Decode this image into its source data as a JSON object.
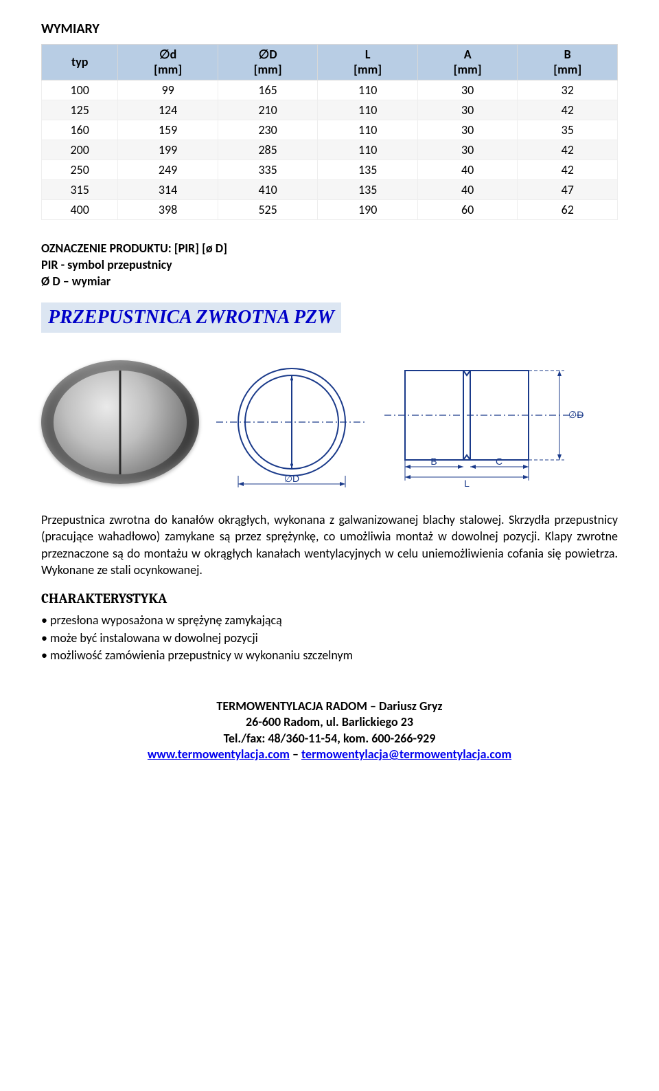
{
  "section_title": "WYMIARY",
  "table": {
    "columns": [
      {
        "label": "typ",
        "unit": ""
      },
      {
        "label": "∅d",
        "unit": "[mm]"
      },
      {
        "label": "∅D",
        "unit": "[mm]"
      },
      {
        "label": "L",
        "unit": "[mm]"
      },
      {
        "label": "A",
        "unit": "[mm]"
      },
      {
        "label": "B",
        "unit": "[mm]"
      }
    ],
    "rows": [
      [
        "100",
        "99",
        "165",
        "110",
        "30",
        "32"
      ],
      [
        "125",
        "124",
        "210",
        "110",
        "30",
        "42"
      ],
      [
        "160",
        "159",
        "230",
        "110",
        "30",
        "35"
      ],
      [
        "200",
        "199",
        "285",
        "110",
        "30",
        "42"
      ],
      [
        "250",
        "249",
        "335",
        "135",
        "40",
        "42"
      ],
      [
        "315",
        "314",
        "410",
        "135",
        "40",
        "47"
      ],
      [
        "400",
        "398",
        "525",
        "190",
        "60",
        "62"
      ]
    ],
    "header_bg": "#b8cde4",
    "row_alt_bg": "#f6f6f6",
    "border_color": "#d8d8d8",
    "font_size": 18
  },
  "product_code": {
    "line1": "OZNACZENIE PRODUKTU: [PIR] [ø D]",
    "line2": "PIR - symbol przepustnicy",
    "line3": "Ø  D – wymiar"
  },
  "heading2": "PRZEPUSTNICA ZWROTNA    PZW",
  "heading2_style": {
    "background_color": "#dce6f2",
    "text_color": "#0000c8",
    "font_size": 28,
    "font_style": "italic bold",
    "font_family": "Times New Roman"
  },
  "diagram": {
    "type": "schematic",
    "circle_label": "∅D",
    "rect_labels": {
      "B": "B",
      "C": "C",
      "L": "L",
      "diameter": "∅D"
    },
    "stroke_color": "#1a3a8a",
    "label_color": "#1a3a8a",
    "dash_pattern": "6,4"
  },
  "body_text": "Przepustnica zwrotna do kanałów okrągłych, wykonana z galwanizowanej blachy stalowej. Skrzydła przepustnicy (pracujące wahadłowo) zamykane są przez sprężynkę, co umożliwia montaż w dowolnej pozycji. Klapy zwrotne przeznaczone są do montażu w okrągłych kanałach wentylacyjnych w celu uniemożliwienia cofania się powietrza. Wykonane ze stali ocynkowanej.",
  "characteristics": {
    "heading": "CHARAKTERYSTYKA",
    "items": [
      "przesłona wyposażona w sprężynę zamykającą",
      "może być instalowana w dowolnej pozycji",
      "możliwość zamówienia przepustnicy w wykonaniu szczelnym"
    ]
  },
  "footer": {
    "line1": "TERMOWENTYLACJA RADOM – Dariusz Gryz",
    "line2": "26-600 Radom, ul. Barlickiego 23",
    "line3": "Tel./fax: 48/360-11-54, kom. 600-266-929",
    "link1": "www.termowentylacja.com",
    "sep": " – ",
    "link2": "termowentylacja@termowentylacja.com"
  }
}
